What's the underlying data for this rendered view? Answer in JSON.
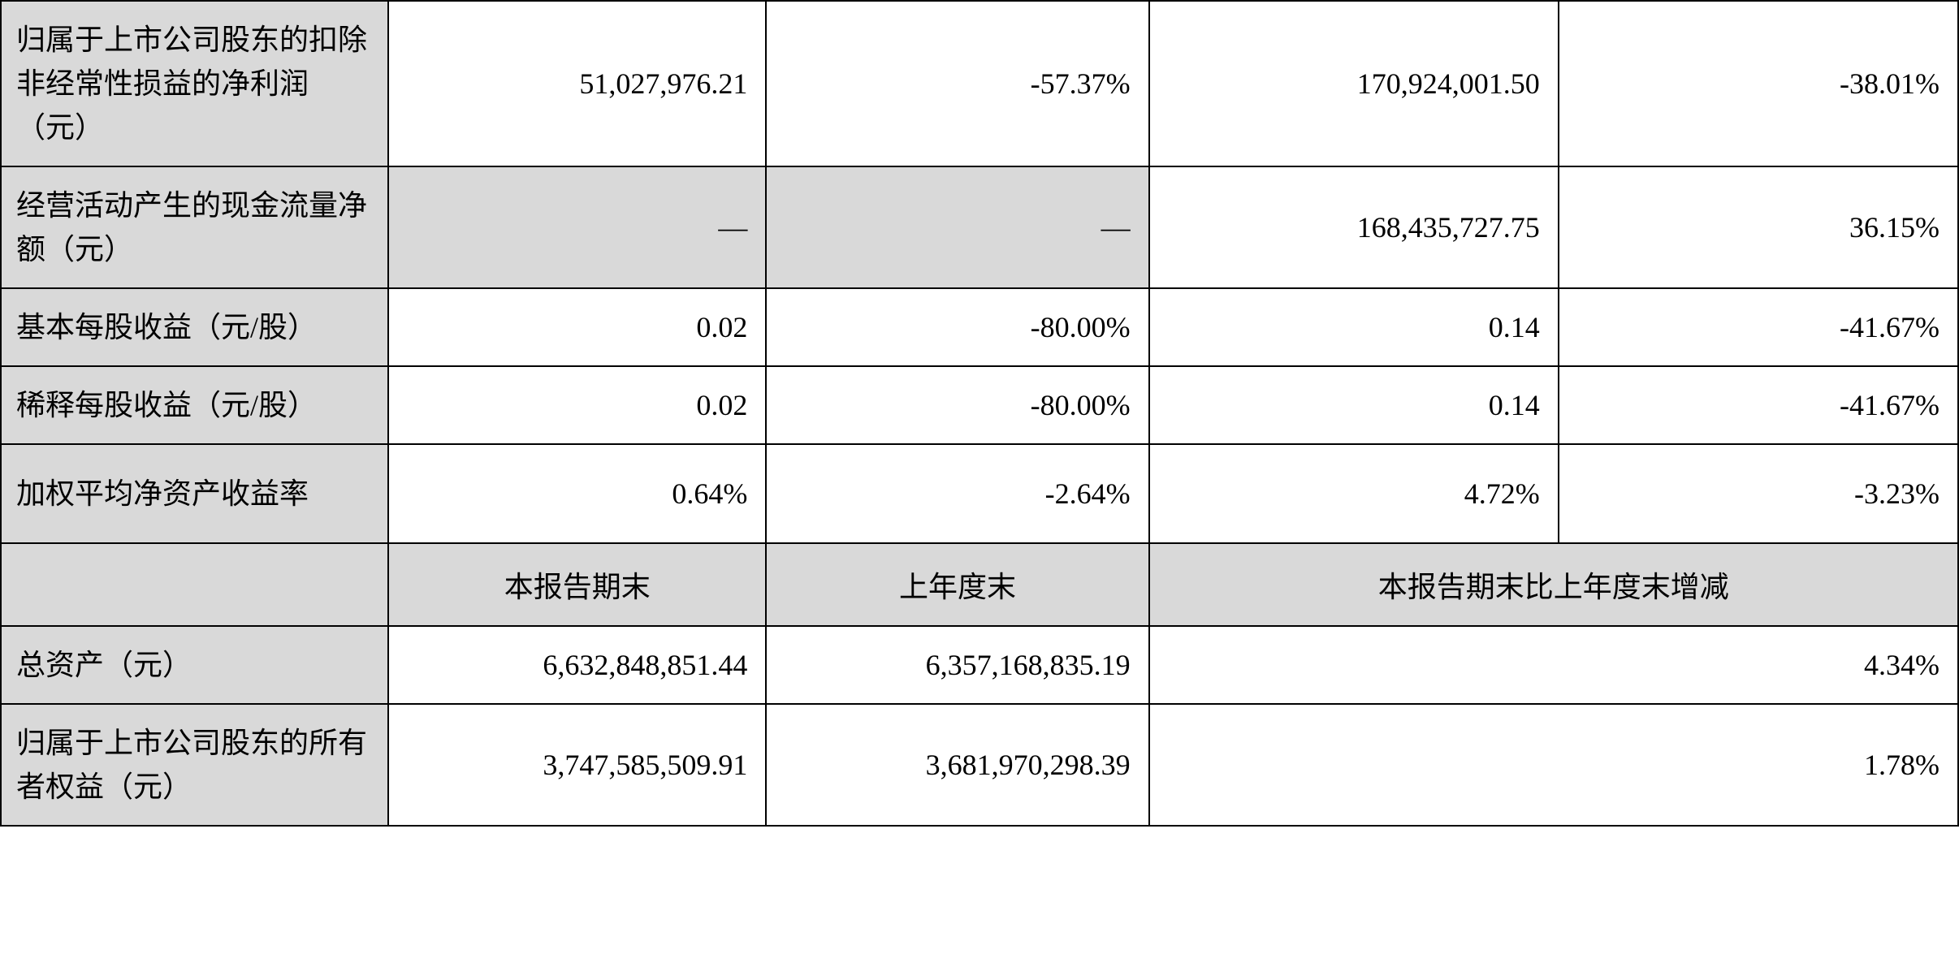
{
  "table": {
    "columns": {
      "label_width": 318,
      "col1_width": 310,
      "col2_width": 314,
      "col3_width": 336,
      "col4_width": 328
    },
    "colors": {
      "shaded_bg": "#d9d9d9",
      "white_bg": "#ffffff",
      "border": "#000000",
      "text": "#000000"
    },
    "typography": {
      "font_family": "SimSun",
      "font_size": 36,
      "line_height": 1.5
    },
    "rows": [
      {
        "label": "归属于上市公司股东的扣除非经常性损益的净利润（元）",
        "cells": [
          {
            "value": "51,027,976.21",
            "shaded": false
          },
          {
            "value": "-57.37%",
            "shaded": false
          },
          {
            "value": "170,924,001.50",
            "shaded": false
          },
          {
            "value": "-38.01%",
            "shaded": false
          }
        ],
        "height": "tall"
      },
      {
        "label": "经营活动产生的现金流量净额（元）",
        "cells": [
          {
            "value": "—",
            "shaded": true
          },
          {
            "value": "—",
            "shaded": true
          },
          {
            "value": "168,435,727.75",
            "shaded": false
          },
          {
            "value": "36.15%",
            "shaded": false
          }
        ],
        "height": "med"
      },
      {
        "label": "基本每股收益（元/股）",
        "cells": [
          {
            "value": "0.02",
            "shaded": false
          },
          {
            "value": "-80.00%",
            "shaded": false
          },
          {
            "value": "0.14",
            "shaded": false
          },
          {
            "value": "-41.67%",
            "shaded": false
          }
        ],
        "height": "short"
      },
      {
        "label": "稀释每股收益（元/股）",
        "cells": [
          {
            "value": "0.02",
            "shaded": false
          },
          {
            "value": "-80.00%",
            "shaded": false
          },
          {
            "value": "0.14",
            "shaded": false
          },
          {
            "value": "-41.67%",
            "shaded": false
          }
        ],
        "height": "short"
      },
      {
        "label": "加权平均净资产收益率",
        "cells": [
          {
            "value": "0.64%",
            "shaded": false
          },
          {
            "value": "-2.64%",
            "shaded": false
          },
          {
            "value": "4.72%",
            "shaded": false
          },
          {
            "value": "-3.23%",
            "shaded": false
          }
        ],
        "height": "med"
      }
    ],
    "header_row": {
      "col1": "本报告期末",
      "col2": "上年度末",
      "col34": "本报告期末比上年度末增减"
    },
    "balance_rows": [
      {
        "label": "总资产（元）",
        "cells": [
          {
            "value": "6,632,848,851.44"
          },
          {
            "value": "6,357,168,835.19"
          },
          {
            "value": "4.34%",
            "colspan": 2
          }
        ],
        "height": "short"
      },
      {
        "label": "归属于上市公司股东的所有者权益（元）",
        "cells": [
          {
            "value": "3,747,585,509.91"
          },
          {
            "value": "3,681,970,298.39"
          },
          {
            "value": "1.78%",
            "colspan": 2
          }
        ],
        "height": "med"
      }
    ]
  }
}
